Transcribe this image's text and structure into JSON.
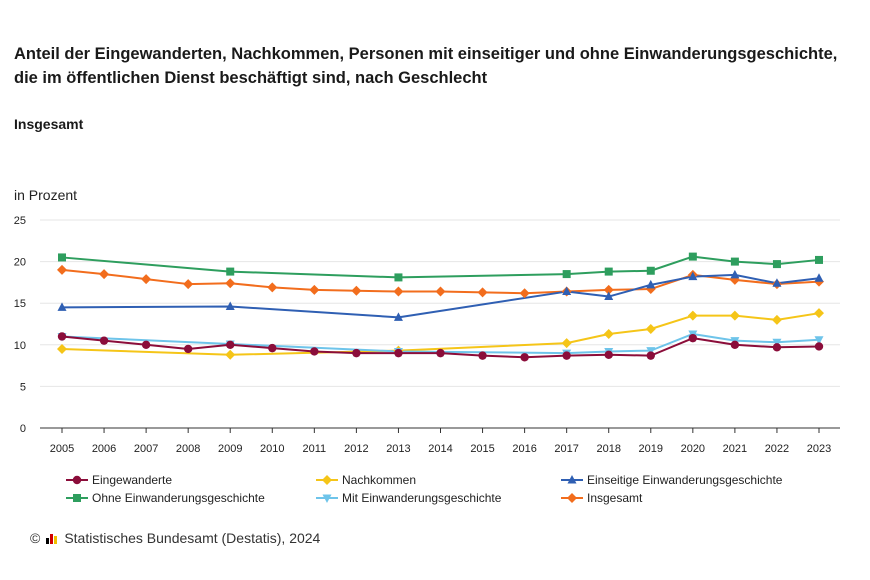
{
  "title": "Anteil der Eingewanderten, Nachkommen, Personen mit einseitiger und ohne Einwanderungsgeschichte, die im öffentlichen Dienst beschäftigt sind, nach Geschlecht",
  "subtitle": "Insgesamt",
  "unit": "in Prozent",
  "footer": {
    "copyright": "©",
    "text": "Statistisches Bundesamt (Destatis), 2024",
    "logo_colors": [
      "#000000",
      "#d00000",
      "#f0c000"
    ]
  },
  "chart_data": {
    "type": "line",
    "title": "Anteil der Eingewanderten, Nachkommen, Personen mit einseitiger und ohne Einwanderungsgeschichte, die im öffentlichen Dienst beschäftigt sind, nach Geschlecht",
    "subtitle": "Insgesamt",
    "ylabel": "in Prozent",
    "ylim": [
      0,
      25
    ],
    "yticks": [
      0,
      5,
      10,
      15,
      20,
      25
    ],
    "grid": true,
    "legend": "bottom",
    "categories": [
      "2005",
      "2006",
      "2007",
      "2008",
      "2009",
      "2010",
      "2011",
      "2012",
      "2013",
      "2014",
      "2015",
      "2016",
      "2017",
      "2018",
      "2019",
      "2020",
      "2021",
      "2022",
      "2023"
    ],
    "series": [
      {
        "name": "Eingewanderte",
        "color": "#8b0d3a",
        "marker": "circle",
        "x": [
          "2005",
          "2006",
          "2007",
          "2008",
          "2009",
          "2010",
          "2011",
          "2012",
          "2013",
          "2014",
          "2015",
          "2016",
          "2017",
          "2018",
          "2019",
          "2020",
          "2021",
          "2022",
          "2023"
        ],
        "values": [
          11.0,
          10.5,
          10.0,
          9.5,
          10.0,
          9.6,
          9.2,
          9.0,
          9.0,
          9.0,
          8.7,
          8.5,
          8.7,
          8.8,
          8.7,
          10.8,
          10.0,
          9.7,
          9.8
        ]
      },
      {
        "name": "Nachkommen",
        "color": "#f5c518",
        "marker": "diamond",
        "x": [
          "2005",
          "2009",
          "2013",
          "2017",
          "2018",
          "2019",
          "2020",
          "2021",
          "2022",
          "2023"
        ],
        "values": [
          9.5,
          8.8,
          9.3,
          10.2,
          11.3,
          11.9,
          13.5,
          13.5,
          13.0,
          13.8
        ]
      },
      {
        "name": "Einseitige Einwanderungsgeschichte",
        "color": "#2f5fb3",
        "marker": "triangle-up",
        "x": [
          "2005",
          "2009",
          "2013",
          "2017",
          "2018",
          "2019",
          "2020",
          "2021",
          "2022",
          "2023"
        ],
        "values": [
          14.5,
          14.6,
          13.3,
          16.4,
          15.8,
          17.2,
          18.2,
          18.4,
          17.4,
          18.0
        ]
      },
      {
        "name": "Ohne Einwanderungsgeschichte",
        "color": "#2e9e5e",
        "marker": "square",
        "x": [
          "2005",
          "2009",
          "2013",
          "2017",
          "2018",
          "2019",
          "2020",
          "2021",
          "2022",
          "2023"
        ],
        "values": [
          20.5,
          18.8,
          18.1,
          18.5,
          18.8,
          18.9,
          20.6,
          20.0,
          19.7,
          20.2
        ]
      },
      {
        "name": "Mit Einwanderungsgeschichte",
        "color": "#6ec4ea",
        "marker": "triangle-down",
        "x": [
          "2005",
          "2009",
          "2013",
          "2017",
          "2018",
          "2019",
          "2020",
          "2021",
          "2022",
          "2023"
        ],
        "values": [
          11.0,
          10.1,
          9.2,
          9.0,
          9.2,
          9.3,
          11.3,
          10.5,
          10.3,
          10.6
        ]
      },
      {
        "name": "Insgesamt",
        "color": "#f26d1d",
        "marker": "diamond",
        "x": [
          "2005",
          "2006",
          "2007",
          "2008",
          "2009",
          "2010",
          "2011",
          "2012",
          "2013",
          "2014",
          "2015",
          "2016",
          "2017",
          "2018",
          "2019",
          "2020",
          "2021",
          "2022",
          "2023"
        ],
        "values": [
          19.0,
          18.5,
          17.9,
          17.3,
          17.4,
          16.9,
          16.6,
          16.5,
          16.4,
          16.4,
          16.3,
          16.2,
          16.4,
          16.6,
          16.7,
          18.4,
          17.8,
          17.3,
          17.6
        ]
      }
    ]
  }
}
